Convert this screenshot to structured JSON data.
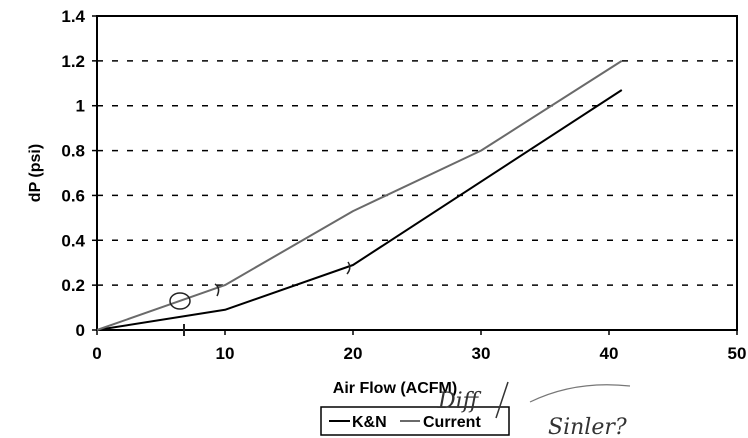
{
  "chart_data": {
    "type": "line",
    "title": "",
    "xlabel": "Air Flow (ACFM)",
    "ylabel": "dP (psi)",
    "xlim": [
      0,
      50
    ],
    "ylim": [
      0,
      1.4
    ],
    "x_ticks": [
      "0",
      "10",
      "20",
      "30",
      "40",
      "50"
    ],
    "y_ticks": [
      "0",
      "0.2",
      "0.4",
      "0.6",
      "0.8",
      "1",
      "1.2",
      "1.4"
    ],
    "grid": "horizontal-dashed",
    "legend_position": "bottom",
    "series": [
      {
        "name": "K&N",
        "color": "#000000",
        "x": [
          0,
          10,
          20,
          41
        ],
        "y": [
          0,
          0.09,
          0.29,
          1.07
        ]
      },
      {
        "name": "Current",
        "color": "#6a6a6a",
        "x": [
          0,
          10,
          20,
          30,
          41
        ],
        "y": [
          0,
          0.2,
          0.53,
          0.8,
          1.2
        ]
      }
    ],
    "annotations": [
      "Diff",
      "Sinler?"
    ]
  }
}
